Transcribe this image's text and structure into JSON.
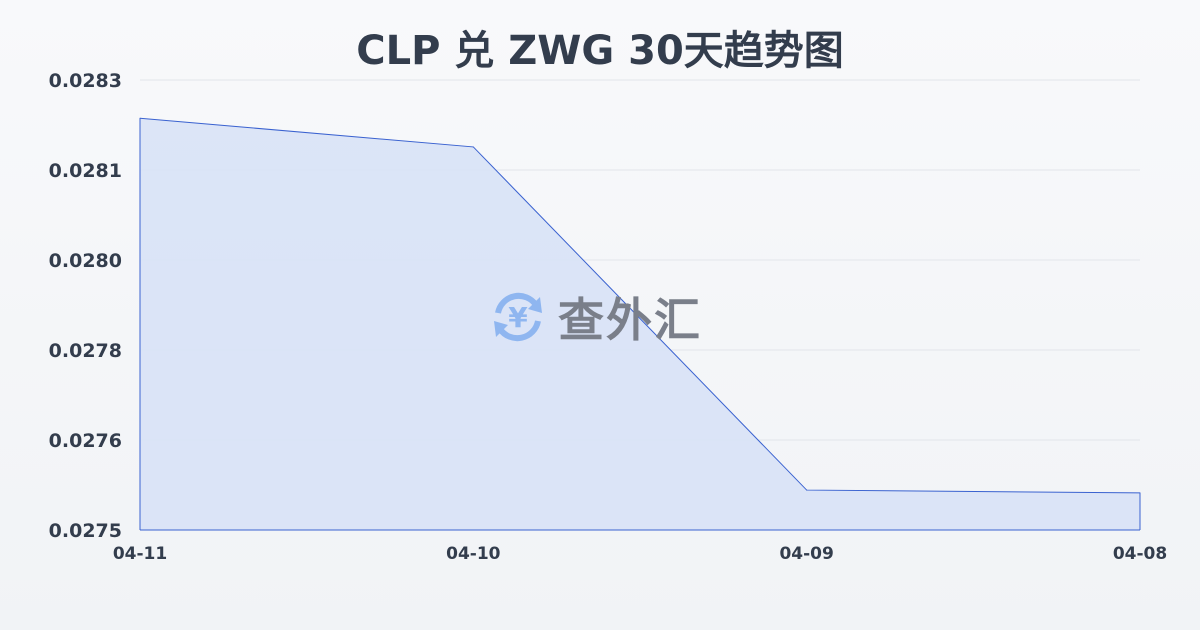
{
  "chart_data": {
    "type": "area",
    "title": "CLP 兑 ZWG 30天趋势图",
    "xlabel": "",
    "ylabel": "",
    "categories": [
      "04-11",
      "04-10",
      "04-09",
      "04-08"
    ],
    "series": [
      {
        "values": [
          0.028212,
          0.028161,
          0.027551,
          0.027546
        ]
      }
    ],
    "ylim": [
      0.02748,
      0.02828
    ],
    "yticks": [
      0.02748,
      0.02764,
      0.0278,
      0.02796,
      0.02812,
      0.02828
    ],
    "ytick_labels": [
      "0.0275",
      "0.0276",
      "0.0278",
      "0.0280",
      "0.0281",
      "0.0283"
    ],
    "grid": true,
    "colors": {
      "line": "#3a62d0",
      "fill": "#d8e2f6"
    }
  },
  "watermark": {
    "text": "查外汇",
    "icon": "yen-exchange-icon",
    "icon_color": "#8fb6f0"
  }
}
